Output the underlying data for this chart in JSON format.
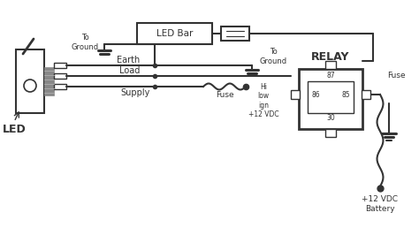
{
  "bg_color": "#ffffff",
  "line_color": "#333333",
  "led_bar_label": "LED Bar",
  "relay_label": "RELAY",
  "led_label": "LED",
  "earth_label": "Earth",
  "load_label": "Load",
  "supply_label": "Supply",
  "fuse_label1": "Fuse",
  "fuse_label2": "Fuse",
  "to_ground_label1": "To\nGround",
  "to_ground_label2": "To\nGround",
  "hi_low_label": "Hi\nlow\nign\n+12 VDC",
  "battery_label": "+12 VDC\nBattery",
  "relay_pins": [
    "87",
    "86",
    "85",
    "30"
  ],
  "figsize": [
    4.74,
    2.66
  ],
  "dpi": 100
}
